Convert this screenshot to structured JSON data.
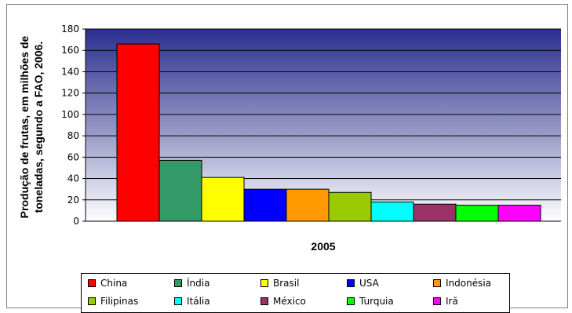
{
  "chart_data": {
    "type": "bar",
    "ylabel_lines": [
      "Produção de frutas, em milhões de",
      "toneladas, segundo a FAO, 2006."
    ],
    "xlabel": "2005",
    "ylim": [
      0,
      180
    ],
    "yticks": [
      "0",
      "20",
      "40",
      "60",
      "80",
      "100",
      "120",
      "140",
      "160",
      "180"
    ],
    "grid": true,
    "legend_position": "bottom",
    "categories": [
      "China",
      "Índia",
      "Brasil",
      "USA",
      "Indonésia",
      "Filipinas",
      "Itália",
      "México",
      "Turquia",
      "Irã"
    ],
    "values": [
      166,
      57,
      41,
      30,
      30,
      27,
      18,
      16,
      15,
      15
    ],
    "colors": [
      "#ff0000",
      "#339966",
      "#ffff00",
      "#0000ff",
      "#ff9900",
      "#99cc00",
      "#00ffff",
      "#993366",
      "#00ff00",
      "#ff00ff"
    ]
  }
}
